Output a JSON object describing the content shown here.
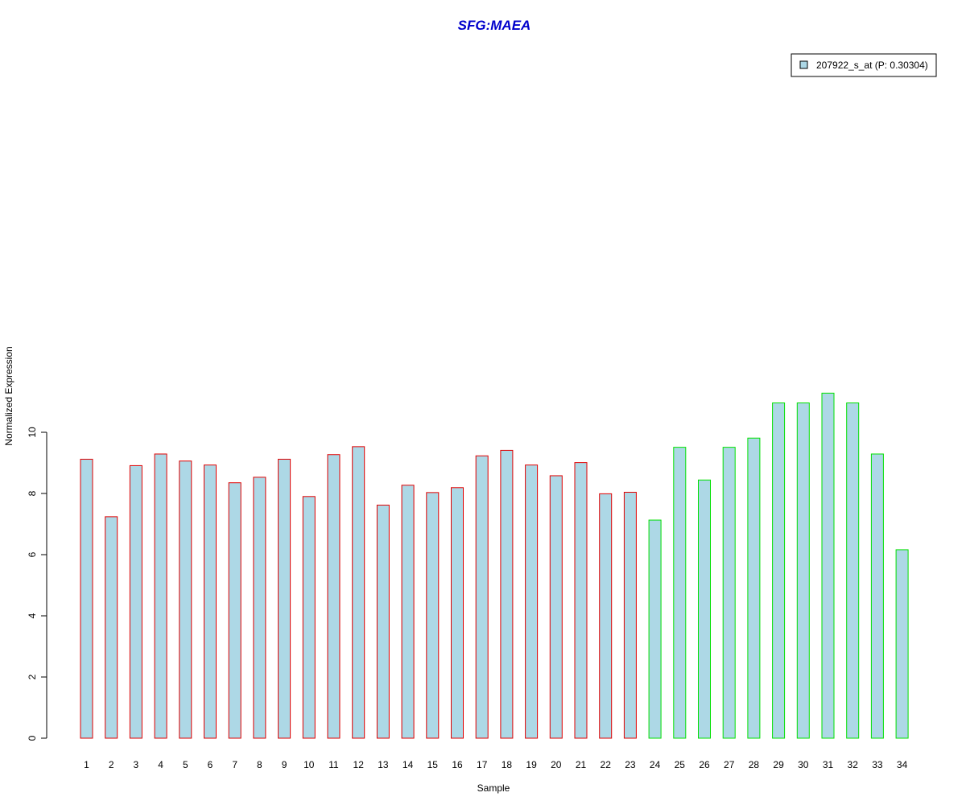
{
  "chart_data": {
    "type": "bar",
    "title": "SFG:MAEA",
    "xlabel": "Sample",
    "ylabel": "Normalized Expression",
    "ylim": [
      0,
      11
    ],
    "yticks": [
      0,
      2,
      4,
      6,
      8,
      10
    ],
    "categories": [
      "1",
      "2",
      "3",
      "4",
      "5",
      "6",
      "7",
      "8",
      "9",
      "10",
      "11",
      "12",
      "13",
      "14",
      "15",
      "16",
      "17",
      "18",
      "19",
      "20",
      "21",
      "22",
      "23",
      "24",
      "25",
      "26",
      "27",
      "28",
      "29",
      "30",
      "31",
      "32",
      "33",
      "34"
    ],
    "values": [
      9.12,
      7.24,
      8.91,
      9.29,
      9.06,
      8.93,
      8.35,
      8.53,
      9.12,
      7.9,
      9.27,
      9.53,
      7.62,
      8.27,
      8.03,
      8.19,
      9.23,
      9.41,
      8.93,
      8.58,
      9.01,
      7.99,
      8.04,
      7.13,
      9.51,
      8.44,
      9.51,
      9.81,
      10.96,
      10.96,
      11.28,
      10.96,
      9.29,
      6.16
    ],
    "group_edge_colors": [
      "#e00000",
      "#e00000",
      "#e00000",
      "#e00000",
      "#e00000",
      "#e00000",
      "#e00000",
      "#e00000",
      "#e00000",
      "#e00000",
      "#e00000",
      "#e00000",
      "#e00000",
      "#e00000",
      "#e00000",
      "#e00000",
      "#e00000",
      "#e00000",
      "#e00000",
      "#e00000",
      "#e00000",
      "#e00000",
      "#e00000",
      "#00e000",
      "#00e000",
      "#00e000",
      "#00e000",
      "#00e000",
      "#00e000",
      "#00e000",
      "#00e000",
      "#00e000",
      "#00e000",
      "#00e000"
    ],
    "fill_color": "#add8e6",
    "title_color": "#0000cc",
    "legend": {
      "label": "207922_s_at (P: 0.30304)",
      "position": "top-right"
    },
    "grid": false
  }
}
